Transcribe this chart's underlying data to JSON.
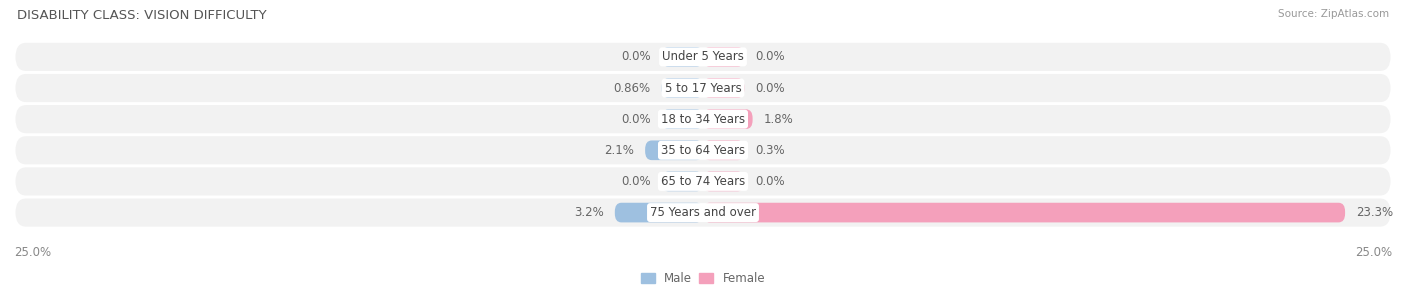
{
  "title": "DISABILITY CLASS: VISION DIFFICULTY",
  "source": "Source: ZipAtlas.com",
  "categories": [
    "Under 5 Years",
    "5 to 17 Years",
    "18 to 34 Years",
    "35 to 64 Years",
    "65 to 74 Years",
    "75 Years and over"
  ],
  "male_values": [
    0.0,
    0.86,
    0.0,
    2.1,
    0.0,
    3.2
  ],
  "female_values": [
    0.0,
    0.0,
    1.8,
    0.3,
    0.0,
    23.3
  ],
  "male_labels": [
    "0.0%",
    "0.86%",
    "0.0%",
    "2.1%",
    "0.0%",
    "3.2%"
  ],
  "female_labels": [
    "0.0%",
    "0.0%",
    "1.8%",
    "0.3%",
    "0.0%",
    "23.3%"
  ],
  "male_color": "#9ec0e0",
  "female_color": "#f4a0bb",
  "row_bg_color": "#f0f0f0",
  "x_max": 25.0,
  "x_min": -25.0,
  "min_bar_width": 1.5,
  "label_fontsize": 8.5,
  "title_fontsize": 9.5,
  "source_fontsize": 7.5,
  "tick_fontsize": 8.5,
  "legend_fontsize": 8.5
}
